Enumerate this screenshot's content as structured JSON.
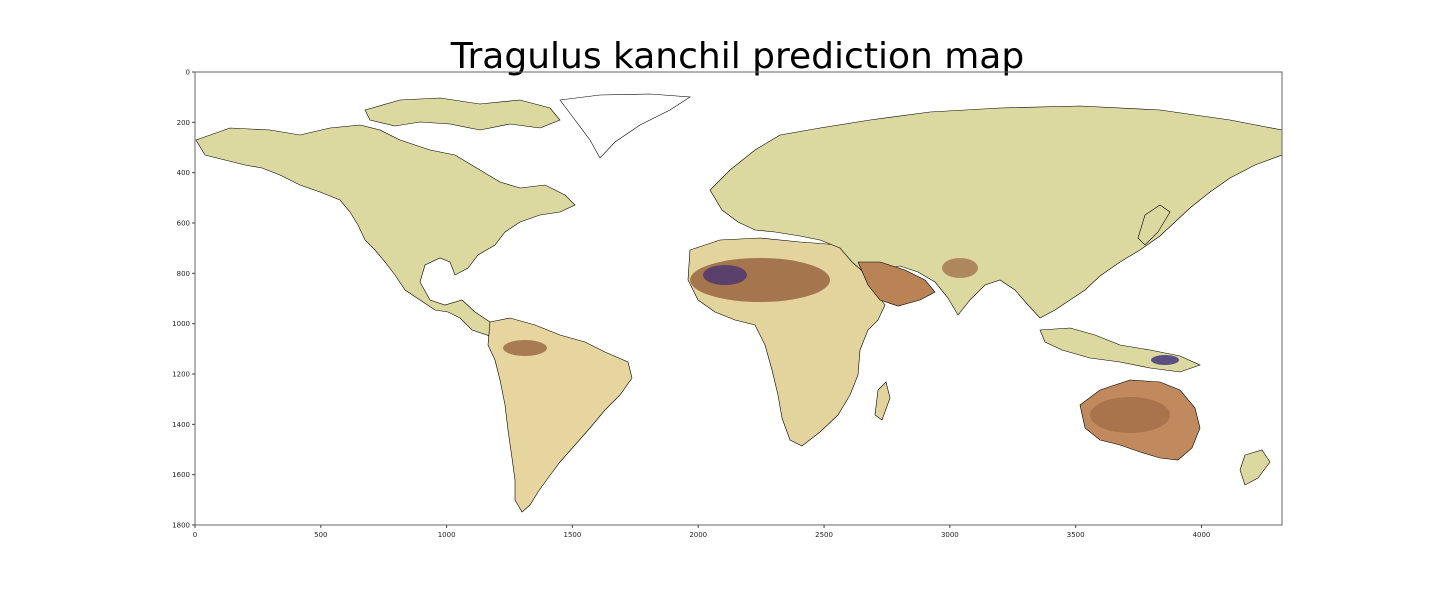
{
  "title": "Tragulus kanchil prediction map",
  "axes": {
    "x_ticks": [
      "0",
      "500",
      "1000",
      "1500",
      "2000",
      "2500",
      "3000",
      "3500",
      "4000"
    ],
    "y_ticks": [
      "0",
      "200",
      "400",
      "600",
      "800",
      "1000",
      "1200",
      "1400",
      "1600",
      "1800"
    ],
    "x_range": [
      0,
      4320
    ],
    "y_range": [
      0,
      1800
    ]
  },
  "colors": {
    "land_low": "#d9dc9a",
    "land_mid": "#ecd7a4",
    "land_high": "#a9704a",
    "land_peak": "#3b2a78",
    "coast": "#000000",
    "frame": "#666666"
  }
}
